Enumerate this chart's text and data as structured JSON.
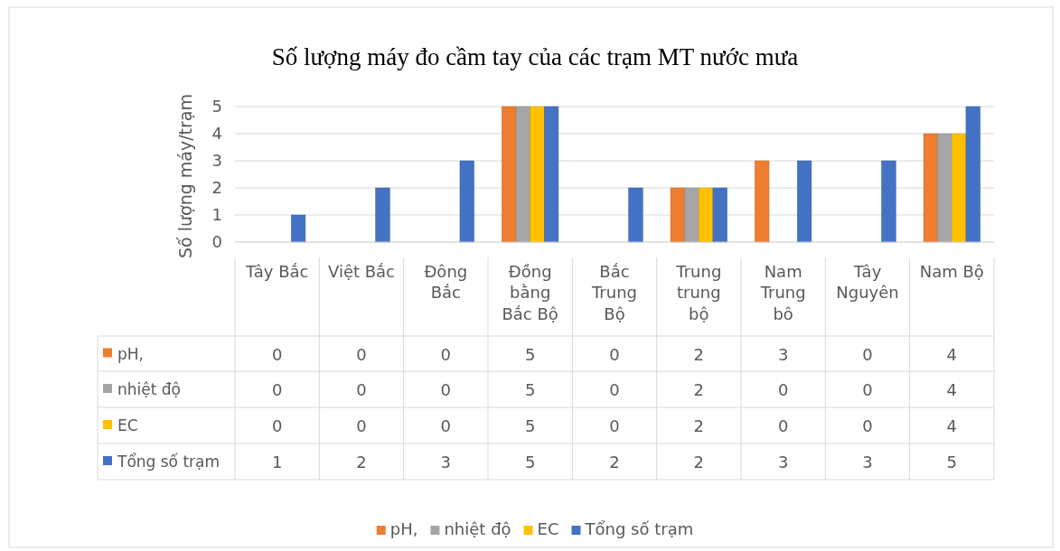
{
  "chart_data": {
    "type": "bar",
    "title": "Số lượng máy đo cầm tay của các trạm MT nước mưa",
    "ylabel": "Số lượng máy/trạm",
    "categories": [
      "Tây Bắc",
      "Việt Bắc",
      "Đông Bắc",
      "Đồng bằng Bắc Bộ",
      "Bắc Trung Bộ",
      "Trung trung bộ",
      "Nam Trung bô",
      "Tây Nguyên",
      "Nam Bộ"
    ],
    "series": [
      {
        "name": "pH,",
        "color": "#ed7d31",
        "values": [
          0,
          0,
          0,
          5,
          0,
          2,
          3,
          0,
          4
        ]
      },
      {
        "name": "nhiệt độ",
        "color": "#a5a5a5",
        "values": [
          0,
          0,
          0,
          5,
          0,
          2,
          0,
          0,
          4
        ]
      },
      {
        "name": "EC",
        "color": "#ffc000",
        "values": [
          0,
          0,
          0,
          5,
          0,
          2,
          0,
          0,
          4
        ]
      },
      {
        "name": "Tổng số trạm",
        "color": "#4472c4",
        "values": [
          1,
          2,
          3,
          5,
          2,
          2,
          3,
          3,
          5
        ]
      }
    ],
    "ylim": [
      0,
      5
    ],
    "yticks": [
      0,
      1,
      2,
      3,
      4,
      5
    ],
    "grid": "y",
    "legend": "bottom",
    "data_labels": true
  }
}
